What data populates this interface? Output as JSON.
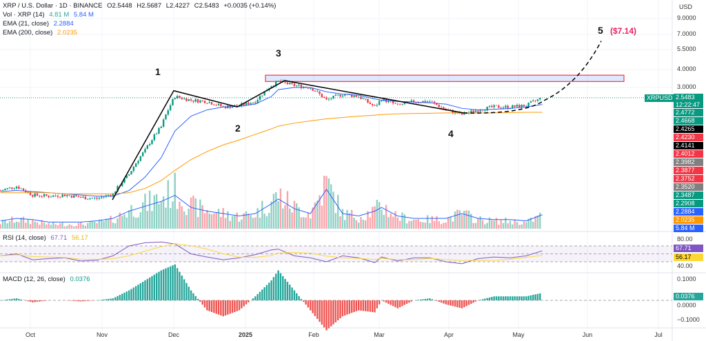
{
  "header": {
    "symbol": "XRP / U.S. Dollar · 1D · BINANCE",
    "open": "O2.5448",
    "high": "H2.5687",
    "low": "L2.4227",
    "close": "C2.5483",
    "change": "+0.0035 (+0.14%)",
    "vol_label": "Vol · XRP (14)",
    "vol_value": "4.81 M",
    "vol_ma": "5.84 M",
    "ema21_label": "EMA (21, close)",
    "ema21_value": "2.2884",
    "ema200_label": "EMA (200, close)",
    "ema200_value": "2.0235",
    "currency": "USD"
  },
  "rsi_legend": {
    "label": "RSI (14, close)",
    "value": "67.71",
    "ma": "56.17"
  },
  "macd_legend": {
    "label": "MACD (12, 26, close)",
    "value": "0.0376"
  },
  "symbol_tag": "XRPUSD",
  "countdown": "12:22:47",
  "price_tags": [
    {
      "v": "2.5483",
      "c": "#089981"
    },
    {
      "v": "2.4772",
      "c": "#089981"
    },
    {
      "v": "2.4668",
      "c": "#089981"
    },
    {
      "v": "2.4265",
      "c": "#000000"
    },
    {
      "v": "2.4230",
      "c": "#f23645"
    },
    {
      "v": "2.4141",
      "c": "#000000"
    },
    {
      "v": "2.4012",
      "c": "#f23645"
    },
    {
      "v": "2.3982",
      "c": "#808080"
    },
    {
      "v": "2.3877",
      "c": "#f23645"
    },
    {
      "v": "2.3752",
      "c": "#f23645"
    },
    {
      "v": "2.3520",
      "c": "#808080"
    },
    {
      "v": "2.3487",
      "c": "#089981"
    },
    {
      "v": "2.2908",
      "c": "#089981"
    },
    {
      "v": "2.2884",
      "c": "#2962ff"
    },
    {
      "v": "2.0235",
      "c": "#ff9800"
    },
    {
      "v": "5.84 M",
      "c": "#2962ff"
    }
  ],
  "annotations": {
    "waves": [
      "1",
      "2",
      "3",
      "4",
      "5"
    ],
    "target": "($7.14)",
    "resistance_zone": [
      3.3,
      3.65
    ]
  },
  "colors": {
    "up": "#089981",
    "down": "#f23645",
    "ema21": "#2962ff",
    "ema200": "#ff9800",
    "rsi": "#7e57c2",
    "rsi_ma": "#fdd835",
    "target": "#e91e63"
  },
  "chart_data": {
    "type": "candlestick",
    "yscale": "log",
    "ylim": [
      0.45,
      10
    ],
    "y_ticks": [
      "9.0000",
      "7.0000",
      "5.5000",
      "4.0000",
      "3.0000"
    ],
    "x_ticks": [
      "Oct",
      "Nov",
      "Dec",
      "2025",
      "Feb",
      "Mar",
      "Apr",
      "May",
      "Jun",
      "Jul"
    ],
    "dates": [
      "2024-09-18",
      "2024-09-25",
      "2024-10-02",
      "2024-10-09",
      "2024-10-16",
      "2024-10-23",
      "2024-10-30",
      "2024-11-06",
      "2024-11-13",
      "2024-11-20",
      "2024-11-27",
      "2024-12-03",
      "2024-12-10",
      "2024-12-17",
      "2024-12-24",
      "2024-12-31",
      "2025-01-07",
      "2025-01-14",
      "2025-01-17",
      "2025-01-24",
      "2025-01-31",
      "2025-02-07",
      "2025-02-14",
      "2025-02-21",
      "2025-02-28",
      "2025-03-03",
      "2025-03-10",
      "2025-03-17",
      "2025-03-24",
      "2025-03-31",
      "2025-04-07",
      "2025-04-14",
      "2025-04-21",
      "2025-04-28",
      "2025-05-05",
      "2025-05-12"
    ],
    "close": [
      0.58,
      0.62,
      0.54,
      0.53,
      0.54,
      0.52,
      0.51,
      0.55,
      0.75,
      1.1,
      1.6,
      2.6,
      2.45,
      2.4,
      2.2,
      2.25,
      2.4,
      3.1,
      3.3,
      3.1,
      3.0,
      2.45,
      2.7,
      2.6,
      2.2,
      2.5,
      2.25,
      2.4,
      2.4,
      2.1,
      1.95,
      2.1,
      2.2,
      2.2,
      2.25,
      2.55
    ],
    "ema21": [
      0.57,
      0.58,
      0.57,
      0.56,
      0.55,
      0.54,
      0.53,
      0.53,
      0.58,
      0.72,
      0.98,
      1.5,
      1.9,
      2.1,
      2.2,
      2.22,
      2.3,
      2.6,
      2.9,
      3.0,
      3.0,
      2.8,
      2.7,
      2.65,
      2.5,
      2.45,
      2.4,
      2.38,
      2.35,
      2.3,
      2.15,
      2.1,
      2.12,
      2.15,
      2.2,
      2.29
    ],
    "ema200": [
      0.56,
      0.56,
      0.56,
      0.56,
      0.55,
      0.55,
      0.55,
      0.55,
      0.56,
      0.6,
      0.68,
      0.8,
      0.95,
      1.08,
      1.2,
      1.3,
      1.42,
      1.55,
      1.62,
      1.7,
      1.76,
      1.82,
      1.86,
      1.9,
      1.93,
      1.95,
      1.97,
      1.98,
      1.99,
      2.0,
      2.0,
      2.0,
      2.0,
      2.01,
      2.02,
      2.02
    ],
    "volume_m": [
      4,
      6,
      5,
      3,
      3,
      3,
      4,
      6,
      12,
      16,
      20,
      25,
      15,
      12,
      10,
      8,
      10,
      18,
      22,
      14,
      10,
      30,
      10,
      8,
      12,
      15,
      8,
      6,
      6,
      6,
      10,
      6,
      5,
      5,
      4,
      9
    ],
    "rsi": [
      55,
      60,
      45,
      48,
      50,
      42,
      44,
      55,
      80,
      88,
      90,
      85,
      60,
      52,
      45,
      50,
      58,
      70,
      72,
      55,
      50,
      40,
      55,
      50,
      38,
      52,
      42,
      50,
      50,
      40,
      35,
      48,
      52,
      50,
      55,
      67.71
    ],
    "macd_hist": [
      0.0,
      0.01,
      -0.01,
      0.0,
      0.0,
      -0.005,
      0.0,
      0.01,
      0.05,
      0.1,
      0.15,
      0.18,
      0.05,
      -0.05,
      -0.08,
      -0.05,
      0.02,
      0.1,
      0.15,
      0.05,
      -0.05,
      -0.15,
      -0.08,
      -0.05,
      -0.06,
      0.0,
      -0.04,
      0.0,
      0.01,
      -0.02,
      -0.04,
      0.0,
      0.02,
      0.02,
      0.02,
      0.0376
    ]
  }
}
